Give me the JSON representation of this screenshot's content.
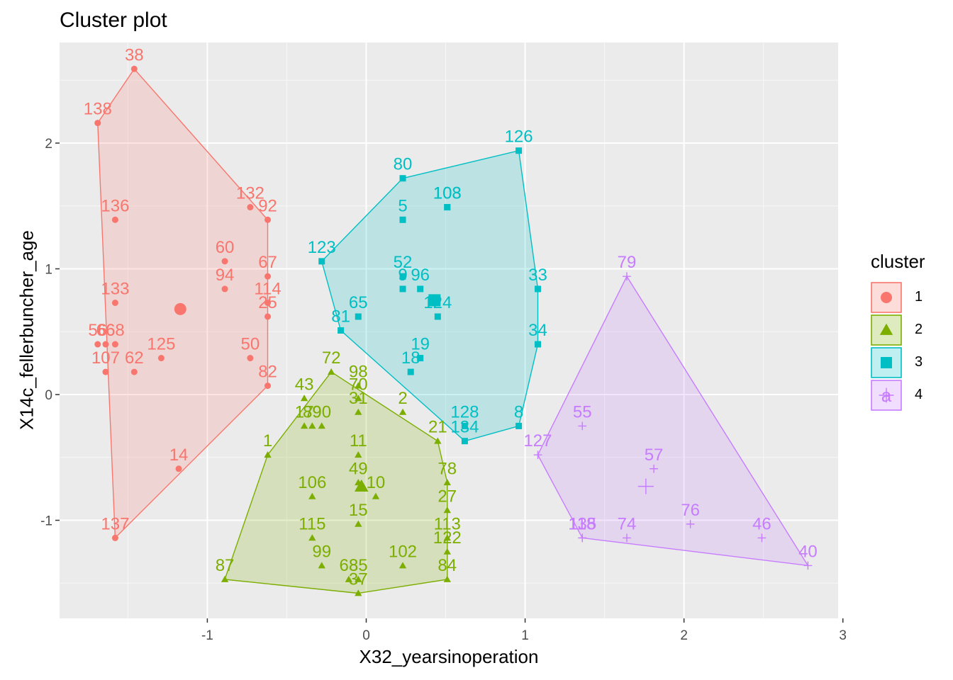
{
  "chart_data": {
    "type": "scatter",
    "title": "Cluster plot",
    "xlabel": "X32_yearsinoperation",
    "ylabel": "X14c_fellerbuncher_age",
    "xlim": [
      -1.93,
      2.97
    ],
    "ylim": [
      -1.78,
      2.8
    ],
    "x_ticks": [
      -1,
      0,
      1,
      2,
      3
    ],
    "y_ticks": [
      -1,
      0,
      1,
      2
    ],
    "x_tick_labels": [
      "-1",
      "0",
      "1",
      "2",
      "3"
    ],
    "y_tick_labels": [
      "-1",
      "0",
      "1",
      "2"
    ],
    "grid": true,
    "legend": {
      "title": "cluster",
      "placement": "right",
      "entries": [
        "1",
        "2",
        "3",
        "4"
      ]
    },
    "colors": {
      "1": "#F8766D",
      "2": "#7CAE00",
      "3": "#00BFC4",
      "4": "#C77CFF"
    },
    "series": [
      {
        "name": "1",
        "marker": "circle",
        "centroid": {
          "x": -1.17,
          "y": 0.68
        },
        "hull": [
          "38",
          "92",
          "82",
          "137",
          "138"
        ],
        "points": [
          {
            "label": "38",
            "x": -1.46,
            "y": 2.59
          },
          {
            "label": "138",
            "x": -1.69,
            "y": 2.16
          },
          {
            "label": "136",
            "x": -1.58,
            "y": 1.39
          },
          {
            "label": "132",
            "x": -0.73,
            "y": 1.49
          },
          {
            "label": "92",
            "x": -0.62,
            "y": 1.39
          },
          {
            "label": "60",
            "x": -0.89,
            "y": 1.06
          },
          {
            "label": "67",
            "x": -0.62,
            "y": 0.94
          },
          {
            "label": "94",
            "x": -0.89,
            "y": 0.84
          },
          {
            "label": "133",
            "x": -1.58,
            "y": 0.73
          },
          {
            "label": "114",
            "x": -0.62,
            "y": 0.73
          },
          {
            "label": "25",
            "x": -0.62,
            "y": 0.62
          },
          {
            "label": "56",
            "x": -1.69,
            "y": 0.4
          },
          {
            "label": "66",
            "x": -1.64,
            "y": 0.4
          },
          {
            "label": "68",
            "x": -1.58,
            "y": 0.4
          },
          {
            "label": "107",
            "x": -1.64,
            "y": 0.18
          },
          {
            "label": "62",
            "x": -1.46,
            "y": 0.18
          },
          {
            "label": "125",
            "x": -1.29,
            "y": 0.29
          },
          {
            "label": "50",
            "x": -0.73,
            "y": 0.29
          },
          {
            "label": "82",
            "x": -0.62,
            "y": 0.07
          },
          {
            "label": "14",
            "x": -1.18,
            "y": -0.59
          },
          {
            "label": "137",
            "x": -1.58,
            "y": -1.14
          }
        ]
      },
      {
        "name": "2",
        "marker": "triangle",
        "centroid": {
          "x": -0.03,
          "y": -0.73
        },
        "hull": [
          "72",
          "21",
          "78",
          "84",
          "37",
          "87",
          "1"
        ],
        "points": [
          {
            "label": "72",
            "x": -0.22,
            "y": 0.18
          },
          {
            "label": "43",
            "x": -0.39,
            "y": -0.03
          },
          {
            "label": "98",
            "x": -0.05,
            "y": 0.07
          },
          {
            "label": "70",
            "x": -0.05,
            "y": -0.03
          },
          {
            "label": "31",
            "x": -0.05,
            "y": -0.14
          },
          {
            "label": "2",
            "x": 0.23,
            "y": -0.14
          },
          {
            "label": "17",
            "x": -0.39,
            "y": -0.25
          },
          {
            "label": "89",
            "x": -0.34,
            "y": -0.25
          },
          {
            "label": "90",
            "x": -0.28,
            "y": -0.25
          },
          {
            "label": "1",
            "x": -0.62,
            "y": -0.48
          },
          {
            "label": "11",
            "x": -0.05,
            "y": -0.48
          },
          {
            "label": "21",
            "x": 0.45,
            "y": -0.37
          },
          {
            "label": "78",
            "x": 0.51,
            "y": -0.7
          },
          {
            "label": "49",
            "x": -0.05,
            "y": -0.7
          },
          {
            "label": "10",
            "x": 0.06,
            "y": -0.81
          },
          {
            "label": "106",
            "x": -0.34,
            "y": -0.81
          },
          {
            "label": "27",
            "x": 0.51,
            "y": -0.92
          },
          {
            "label": "15",
            "x": -0.05,
            "y": -1.03
          },
          {
            "label": "115",
            "x": -0.34,
            "y": -1.14
          },
          {
            "label": "113",
            "x": 0.51,
            "y": -1.14
          },
          {
            "label": "99",
            "x": -0.28,
            "y": -1.36
          },
          {
            "label": "102",
            "x": 0.23,
            "y": -1.36
          },
          {
            "label": "122",
            "x": 0.51,
            "y": -1.25
          },
          {
            "label": "84",
            "x": 0.51,
            "y": -1.47
          },
          {
            "label": "68",
            "x": -0.11,
            "y": -1.47
          },
          {
            "label": "85",
            "x": -0.05,
            "y": -1.47
          },
          {
            "label": "37",
            "x": -0.05,
            "y": -1.58
          },
          {
            "label": "87",
            "x": -0.89,
            "y": -1.47
          }
        ]
      },
      {
        "name": "3",
        "marker": "square",
        "centroid": {
          "x": 0.43,
          "y": 0.75
        },
        "hull": [
          "80",
          "126",
          "33",
          "34",
          "8",
          "134",
          "81",
          "123"
        ],
        "points": [
          {
            "label": "126",
            "x": 0.96,
            "y": 1.94
          },
          {
            "label": "80",
            "x": 0.23,
            "y": 1.72
          },
          {
            "label": "5",
            "x": 0.23,
            "y": 1.39
          },
          {
            "label": "103",
            "x": 0.51,
            "y": 1.49
          },
          {
            "label": "108",
            "x": 0.51,
            "y": 1.49
          },
          {
            "label": "123",
            "x": -0.28,
            "y": 1.06
          },
          {
            "label": "52",
            "x": 0.23,
            "y": 0.94
          },
          {
            "label": "9",
            "x": 0.23,
            "y": 0.84
          },
          {
            "label": "96",
            "x": 0.34,
            "y": 0.84
          },
          {
            "label": "33",
            "x": 1.08,
            "y": 0.84
          },
          {
            "label": "124",
            "x": 0.45,
            "y": 0.62
          },
          {
            "label": "65",
            "x": -0.05,
            "y": 0.62
          },
          {
            "label": "81",
            "x": -0.16,
            "y": 0.51
          },
          {
            "label": "34",
            "x": 1.08,
            "y": 0.4
          },
          {
            "label": "19",
            "x": 0.34,
            "y": 0.29
          },
          {
            "label": "18",
            "x": 0.28,
            "y": 0.18
          },
          {
            "label": "128",
            "x": 0.62,
            "y": -0.25
          },
          {
            "label": "134",
            "x": 0.62,
            "y": -0.37
          },
          {
            "label": "8",
            "x": 0.96,
            "y": -0.25
          }
        ]
      },
      {
        "name": "4",
        "marker": "plus",
        "centroid": {
          "x": 1.76,
          "y": -0.73
        },
        "hull": [
          "79",
          "40",
          "135",
          "127"
        ],
        "points": [
          {
            "label": "79",
            "x": 1.64,
            "y": 0.94
          },
          {
            "label": "55",
            "x": 1.36,
            "y": -0.25
          },
          {
            "label": "127",
            "x": 1.08,
            "y": -0.48
          },
          {
            "label": "57",
            "x": 1.81,
            "y": -0.59
          },
          {
            "label": "76",
            "x": 2.04,
            "y": -1.03
          },
          {
            "label": "118",
            "x": 1.36,
            "y": -1.14
          },
          {
            "label": "135",
            "x": 1.36,
            "y": -1.14
          },
          {
            "label": "74",
            "x": 1.64,
            "y": -1.14
          },
          {
            "label": "46",
            "x": 2.49,
            "y": -1.14
          },
          {
            "label": "40",
            "x": 2.78,
            "y": -1.36
          }
        ]
      }
    ]
  }
}
